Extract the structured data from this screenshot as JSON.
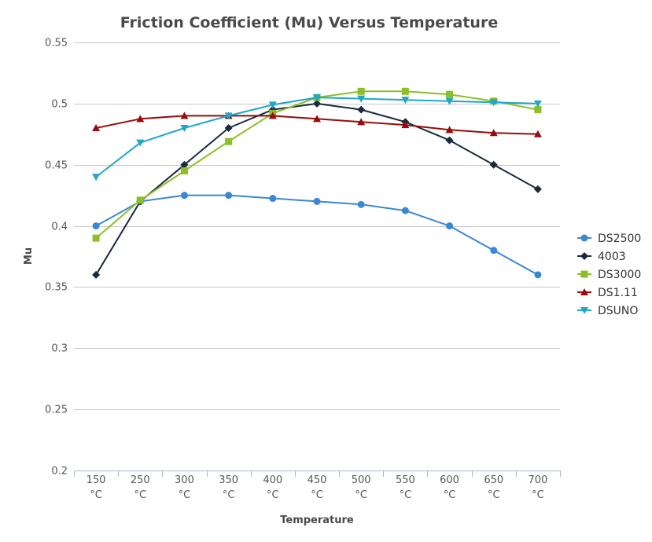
{
  "chart_data": {
    "type": "line",
    "title": "Friction Coefficient (Mu) Versus Temperature",
    "xlabel": "Temperature",
    "ylabel": "Mu",
    "unit": "°C",
    "categories": [
      "150",
      "250",
      "300",
      "350",
      "400",
      "450",
      "500",
      "550",
      "600",
      "650",
      "700"
    ],
    "ylim": [
      0.2,
      0.55
    ],
    "yticks": [
      0.2,
      0.25,
      0.3,
      0.35,
      0.4,
      0.45,
      0.5,
      0.55
    ],
    "ytick_labels": [
      "0.2",
      "0.25",
      "0.3",
      "0.35",
      "0.4",
      "0.45",
      "0.5",
      "0.55"
    ],
    "grid": true,
    "legend_position": "right",
    "series": [
      {
        "name": "DS2500",
        "color": "#3a87d6",
        "marker": "circle",
        "values": [
          0.4,
          0.42,
          0.425,
          0.425,
          0.4225,
          0.42,
          0.4175,
          0.4125,
          0.4,
          0.38,
          0.36
        ]
      },
      {
        "name": "4003",
        "color": "#1a2a3e",
        "marker": "diamond",
        "values": [
          0.36,
          0.42,
          0.45,
          0.48,
          0.495,
          0.5,
          0.495,
          0.485,
          0.47,
          0.45,
          0.43
        ]
      },
      {
        "name": "DS3000",
        "color": "#8cbf26",
        "marker": "square",
        "values": [
          0.39,
          0.421,
          0.445,
          0.469,
          0.492,
          0.505,
          0.51,
          0.51,
          0.5075,
          0.502,
          0.495
        ]
      },
      {
        "name": "DS1.11",
        "color": "#990b0b",
        "marker": "triangle",
        "values": [
          0.48,
          0.4875,
          0.49,
          0.49,
          0.49,
          0.4875,
          0.485,
          0.4825,
          0.4785,
          0.476,
          0.475
        ]
      },
      {
        "name": "DSUNO",
        "color": "#1fa7c8",
        "marker": "triangle-down",
        "values": [
          0.44,
          0.468,
          0.48,
          0.49,
          0.499,
          0.505,
          0.504,
          0.503,
          0.502,
          0.501,
          0.5
        ]
      }
    ]
  }
}
